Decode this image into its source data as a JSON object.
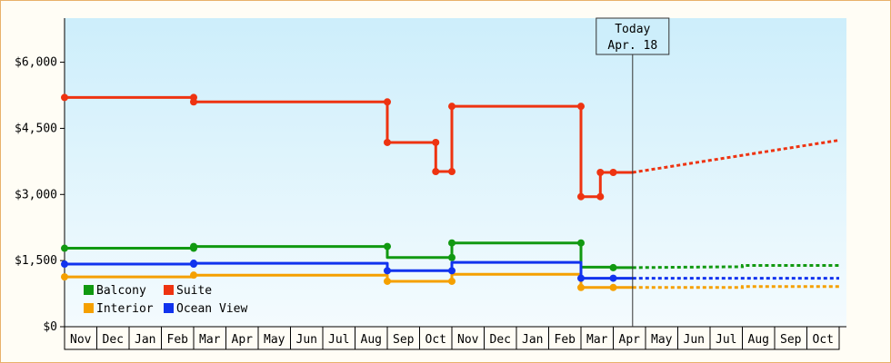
{
  "chart_data": {
    "type": "line",
    "step": true,
    "y_ticks": [
      0,
      1500,
      3000,
      4500,
      6000
    ],
    "y_tick_labels": [
      "$0",
      "$1,500",
      "$3,000",
      "$4,500",
      "$6,000"
    ],
    "ylim": [
      0,
      7000
    ],
    "x_ticks": [
      "Nov",
      "Dec",
      "Jan",
      "Feb",
      "Mar",
      "Apr",
      "May",
      "Jun",
      "Jul",
      "Aug",
      "Sep",
      "Oct",
      "Nov",
      "Dec",
      "Jan",
      "Feb",
      "Mar",
      "Apr",
      "May",
      "Jun",
      "Jul",
      "Aug",
      "Sep",
      "Oct"
    ],
    "today_marker": {
      "line1": "Today",
      "line2": "Apr. 18",
      "x": 17.6
    },
    "legend_position": "bottom-left",
    "series": [
      {
        "name": "Balcony",
        "color": "#119911",
        "points": [
          [
            0.0,
            1780
          ],
          [
            4.0,
            1780
          ],
          [
            4.0,
            1820
          ],
          [
            10.0,
            1820
          ],
          [
            10.0,
            1570
          ],
          [
            12.0,
            1570
          ],
          [
            12.0,
            1900
          ],
          [
            16.0,
            1900
          ],
          [
            16.0,
            1350
          ],
          [
            17.0,
            1350
          ],
          [
            17.0,
            1340
          ],
          [
            17.6,
            1340
          ]
        ],
        "forecast": [
          [
            17.6,
            1340
          ],
          [
            21.0,
            1360
          ],
          [
            21.0,
            1390
          ],
          [
            24.0,
            1390
          ]
        ]
      },
      {
        "name": "Suite",
        "color": "#ee3311",
        "points": [
          [
            0.0,
            5200
          ],
          [
            4.0,
            5200
          ],
          [
            4.0,
            5100
          ],
          [
            10.0,
            5100
          ],
          [
            10.0,
            4180
          ],
          [
            11.5,
            4180
          ],
          [
            11.5,
            3520
          ],
          [
            12.0,
            3520
          ],
          [
            12.0,
            5000
          ],
          [
            16.0,
            5000
          ],
          [
            16.0,
            2950
          ],
          [
            16.6,
            2950
          ],
          [
            16.6,
            3500
          ],
          [
            17.6,
            3500
          ]
        ],
        "forecast": [
          [
            17.6,
            3500
          ],
          [
            24.0,
            4230
          ]
        ]
      },
      {
        "name": "Interior",
        "color": "#f5a000",
        "points": [
          [
            0.0,
            1130
          ],
          [
            4.0,
            1130
          ],
          [
            4.0,
            1170
          ],
          [
            10.0,
            1170
          ],
          [
            10.0,
            1030
          ],
          [
            12.0,
            1030
          ],
          [
            12.0,
            1190
          ],
          [
            16.0,
            1190
          ],
          [
            16.0,
            890
          ],
          [
            17.6,
            890
          ]
        ],
        "forecast": [
          [
            17.6,
            890
          ],
          [
            21.0,
            890
          ],
          [
            21.0,
            910
          ],
          [
            24.0,
            910
          ]
        ]
      },
      {
        "name": "Ocean View",
        "color": "#1133ee",
        "points": [
          [
            0.0,
            1420
          ],
          [
            4.0,
            1420
          ],
          [
            4.0,
            1440
          ],
          [
            10.0,
            1440
          ],
          [
            10.0,
            1270
          ],
          [
            12.0,
            1270
          ],
          [
            12.0,
            1460
          ],
          [
            16.0,
            1460
          ],
          [
            16.0,
            1100
          ],
          [
            17.6,
            1100
          ]
        ],
        "forecast": [
          [
            17.6,
            1100
          ],
          [
            24.0,
            1100
          ]
        ]
      }
    ],
    "markers": {
      "Balcony": [
        [
          0.0,
          1780
        ],
        [
          4.0,
          1780
        ],
        [
          4.0,
          1820
        ],
        [
          10.0,
          1820
        ],
        [
          12.0,
          1570
        ],
        [
          12.0,
          1900
        ],
        [
          16.0,
          1900
        ],
        [
          17.0,
          1340
        ]
      ],
      "Suite": [
        [
          0.0,
          5200
        ],
        [
          4.0,
          5200
        ],
        [
          4.0,
          5100
        ],
        [
          10.0,
          5100
        ],
        [
          10.0,
          4180
        ],
        [
          11.5,
          4180
        ],
        [
          11.5,
          3520
        ],
        [
          12.0,
          3520
        ],
        [
          12.0,
          5000
        ],
        [
          16.0,
          5000
        ],
        [
          16.0,
          2950
        ],
        [
          16.6,
          2950
        ],
        [
          16.6,
          3500
        ],
        [
          17.0,
          3500
        ]
      ],
      "Interior": [
        [
          0.0,
          1130
        ],
        [
          4.0,
          1170
        ],
        [
          10.0,
          1030
        ],
        [
          12.0,
          1030
        ],
        [
          16.0,
          890
        ],
        [
          17.0,
          890
        ]
      ],
      "Ocean View": [
        [
          0.0,
          1420
        ],
        [
          4.0,
          1420
        ],
        [
          4.0,
          1440
        ],
        [
          10.0,
          1270
        ],
        [
          12.0,
          1270
        ],
        [
          16.0,
          1100
        ],
        [
          17.0,
          1100
        ]
      ]
    }
  }
}
